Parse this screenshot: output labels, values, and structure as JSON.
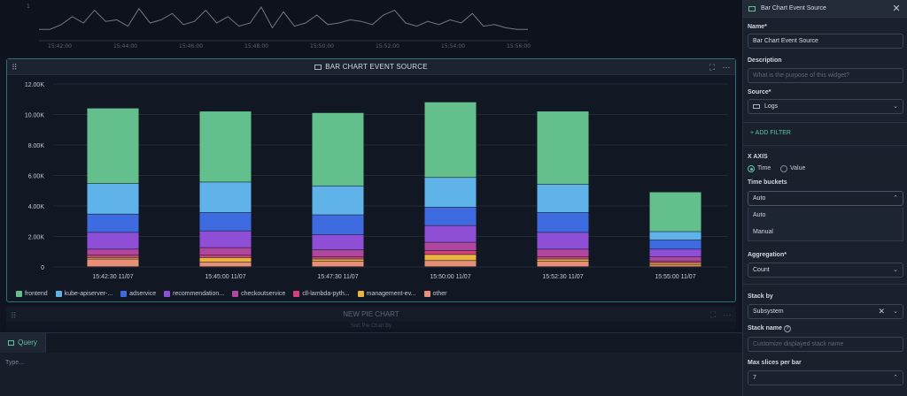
{
  "colors": {
    "accent": "#5cc6a1",
    "frontend": "#63bf8c",
    "kube": "#5fb3e8",
    "adservice": "#3e6ce0",
    "recommendation": "#8e4fd6",
    "checkout": "#b0469f",
    "cll": "#d6407a",
    "management": "#e9b43f",
    "other": "#e98f78"
  },
  "top_chart": {
    "y_tick": "1",
    "x_ticks": [
      "15:42:00",
      "15:44:00",
      "15:46:00",
      "15:48:00",
      "15:50:00",
      "15:52:00",
      "15:54:00",
      "15:56:00"
    ],
    "series": [
      0.3,
      0.3,
      0.45,
      0.7,
      0.5,
      0.9,
      0.55,
      0.6,
      0.4,
      0.95,
      0.5,
      0.6,
      0.8,
      0.45,
      0.55,
      0.9,
      0.5,
      0.7,
      0.4,
      0.5,
      1.0,
      0.35,
      0.85,
      0.4,
      0.5,
      0.75,
      0.45,
      0.5,
      0.6,
      0.55,
      0.45,
      0.75,
      0.9,
      0.5,
      0.4,
      0.55,
      0.45,
      0.6,
      0.5,
      0.8,
      0.4,
      0.45,
      0.35,
      0.3,
      0.3
    ]
  },
  "bar_widget": {
    "title": "BAR CHART EVENT SOURCE",
    "drag_icon": "⠿",
    "expand_icon": "⛶",
    "more_icon": "⋯"
  },
  "chart_data": {
    "type": "bar",
    "stacked": true,
    "categories": [
      "15:42:30 11/07",
      "15:45:00 11/07",
      "15:47:30 11/07",
      "15:50:00 11/07",
      "15:52:30 11/07",
      "15:55:00 11/07"
    ],
    "y_ticks": [
      "0",
      "2.00K",
      "4.00K",
      "6.00K",
      "8.00K",
      "10.00K",
      "12.00K"
    ],
    "ylim": [
      0,
      12000
    ],
    "series": [
      {
        "name": "other",
        "values": [
          500,
          300,
          350,
          400,
          350,
          120
        ]
      },
      {
        "name": "management-ev...",
        "values": [
          100,
          300,
          150,
          400,
          150,
          130
        ]
      },
      {
        "name": "cll-lambda-pyth...",
        "values": [
          150,
          150,
          150,
          250,
          150,
          100
        ]
      },
      {
        "name": "checkoutservice",
        "values": [
          400,
          500,
          450,
          550,
          500,
          300
        ]
      },
      {
        "name": "recommendation...",
        "values": [
          1100,
          1100,
          1000,
          1100,
          1100,
          500
        ]
      },
      {
        "name": "adservice",
        "values": [
          1200,
          1200,
          1300,
          1200,
          1300,
          600
        ]
      },
      {
        "name": "kube-apiserver-...",
        "values": [
          2000,
          2000,
          1900,
          1950,
          1850,
          550
        ]
      },
      {
        "name": "frontend",
        "values": [
          4950,
          4650,
          4800,
          4950,
          4800,
          2600
        ]
      }
    ],
    "legend_order": [
      "frontend",
      "kube-apiserver-...",
      "adservice",
      "recommendation...",
      "checkoutservice",
      "cll-lambda-pyth...",
      "management-ev...",
      "other"
    ],
    "legend_colors": [
      "#63bf8c",
      "#5fb3e8",
      "#3e6ce0",
      "#8e4fd6",
      "#b0469f",
      "#d6407a",
      "#e9b43f",
      "#e98f78"
    ],
    "stack_colors": [
      "#e98f78",
      "#e9b43f",
      "#d6407a",
      "#b0469f",
      "#8e4fd6",
      "#3e6ce0",
      "#5fb3e8",
      "#63bf8c"
    ],
    "legend_position": "bottom-left",
    "grid": true
  },
  "pie_widget": {
    "title": "NEW PIE CHART",
    "subtitle": "Sort Pie Chart By"
  },
  "query_panel": {
    "tab_label": "Query",
    "placeholder": "Type..."
  },
  "sidebar": {
    "title": "Bar Chart Event Source",
    "name_label": "Name*",
    "name_value": "Bar Chart Event Source",
    "description_label": "Description",
    "description_placeholder": "What is the purpose of this widget?",
    "source_label": "Source*",
    "source_value": "Logs",
    "add_filter": "+ ADD FILTER",
    "x_axis_label": "X AXIS",
    "x_axis_options": [
      "Time",
      "Value"
    ],
    "x_axis_selected": "Time",
    "time_buckets_label": "Time buckets",
    "time_buckets_value": "Auto",
    "time_buckets_options": [
      "Auto",
      "Manual"
    ],
    "aggregation_label": "Aggregation*",
    "aggregation_value": "Count",
    "stack_by_label": "Stack by",
    "stack_by_value": "Subsystem",
    "stack_name_label": "Stack name",
    "stack_name_placeholder": "Customize displayed stack name",
    "max_slices_label": "Max slices per bar",
    "max_slices_value": "7"
  }
}
